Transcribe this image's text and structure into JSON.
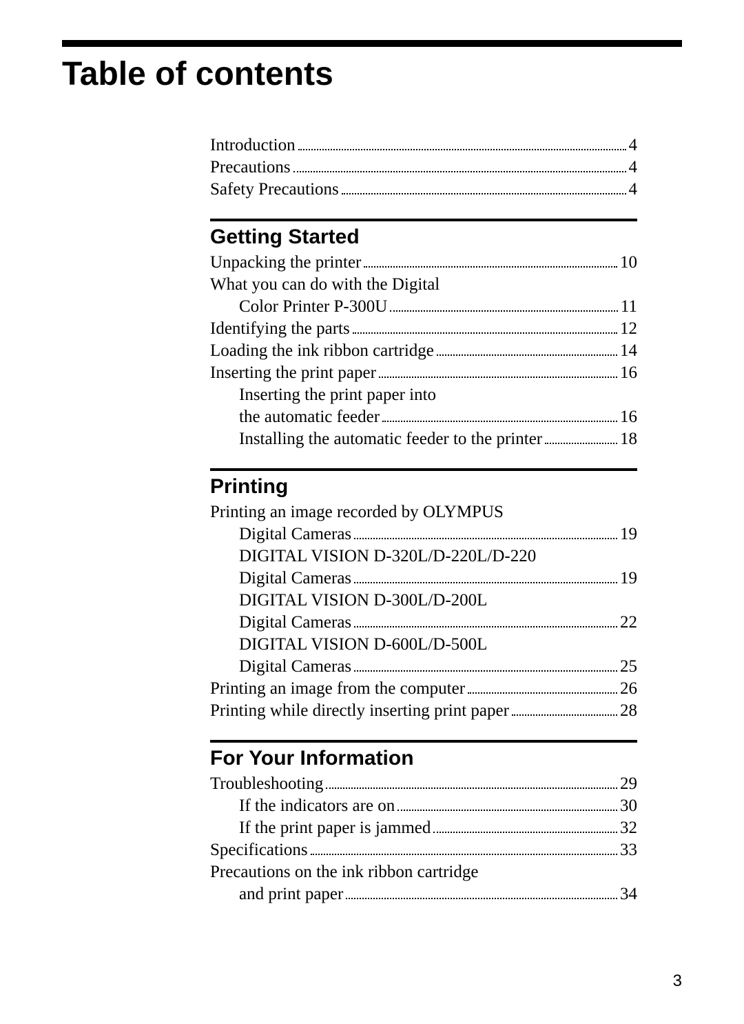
{
  "title": "Table of contents",
  "page_number": "3",
  "intro_items": [
    {
      "label": "Introduction",
      "page": "4",
      "indent": 0
    },
    {
      "label": "Precautions",
      "page": "4",
      "indent": 0
    },
    {
      "label": "Safety Precautions",
      "page": "4",
      "indent": 0
    }
  ],
  "sections": [
    {
      "heading": "Getting Started",
      "items": [
        {
          "label": "Unpacking the printer",
          "page": "10",
          "indent": 0
        },
        {
          "label": "What you can do with the Digital",
          "indent": 0
        },
        {
          "label": "Color Printer P-300U",
          "page": "11",
          "indent": 1
        },
        {
          "label": "Identifying the parts",
          "page": "12",
          "indent": 0
        },
        {
          "label": "Loading the ink ribbon cartridge",
          "page": "14",
          "indent": 0
        },
        {
          "label": "Inserting the print paper",
          "page": "16",
          "indent": 0
        },
        {
          "label": "Inserting the print paper into",
          "indent": 1
        },
        {
          "label": "the automatic feeder",
          "page": "16",
          "indent": 2
        },
        {
          "label": "Installing the automatic feeder to the printer",
          "page": "18",
          "indent": 1
        }
      ]
    },
    {
      "heading": "Printing",
      "items": [
        {
          "label": "Printing an image recorded by OLYMPUS",
          "indent": 0
        },
        {
          "label": "Digital Cameras",
          "page": "19",
          "indent": 1
        },
        {
          "label": "DIGITAL VISION D-320L/D-220L/D-220",
          "indent": 1
        },
        {
          "label": "Digital Cameras",
          "page": "19",
          "indent": 2
        },
        {
          "label": "DIGITAL VISION D-300L/D-200L",
          "indent": 1
        },
        {
          "label": "Digital Cameras",
          "page": "22",
          "indent": 2
        },
        {
          "label": "DIGITAL VISION D-600L/D-500L",
          "indent": 1
        },
        {
          "label": "Digital Cameras",
          "page": "25",
          "indent": 2
        },
        {
          "label": "Printing an image from the computer",
          "page": "26",
          "indent": 0
        },
        {
          "label": "Printing while directly inserting print paper",
          "page": "28",
          "indent": 0
        }
      ]
    },
    {
      "heading": "For Your Information",
      "items": [
        {
          "label": "Troubleshooting",
          "page": "29",
          "indent": 0
        },
        {
          "label": "If the indicators are on",
          "page": "30",
          "indent": 1
        },
        {
          "label": "If the print paper is jammed",
          "page": "32",
          "indent": 1
        },
        {
          "label": "Specifications",
          "page": "33",
          "indent": 0
        },
        {
          "label": "Precautions on the ink ribbon cartridge",
          "indent": 0
        },
        {
          "label": "and print paper",
          "page": "34",
          "indent": 1
        }
      ]
    }
  ]
}
